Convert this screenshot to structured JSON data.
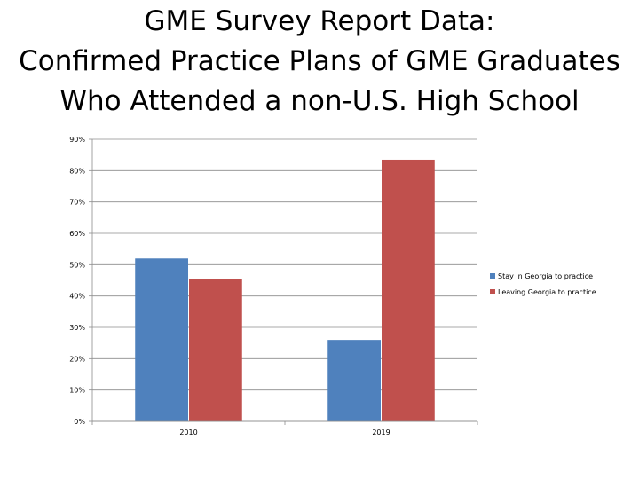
{
  "title": {
    "line1": "GME Survey Report Data:",
    "line2": "Confirmed Practice Plans of GME Graduates",
    "line3": "Who Attended a non-U.S. High School"
  },
  "chart_data": {
    "type": "bar",
    "categories": [
      "2010",
      "2019"
    ],
    "series": [
      {
        "name": "Stay in Georgia to practice",
        "values": [
          52,
          26
        ],
        "color": "#4F81BD"
      },
      {
        "name": "Leaving Georgia to practice",
        "values": [
          45.5,
          83.5
        ],
        "color": "#C0504D"
      }
    ],
    "ylim": [
      0,
      90
    ],
    "yticks": [
      0,
      10,
      20,
      30,
      40,
      50,
      60,
      70,
      80,
      90
    ],
    "ytick_labels": [
      "0%",
      "10%",
      "20%",
      "30%",
      "40%",
      "50%",
      "60%",
      "70%",
      "80%",
      "90%"
    ],
    "grid": true,
    "legend_position": "right"
  }
}
